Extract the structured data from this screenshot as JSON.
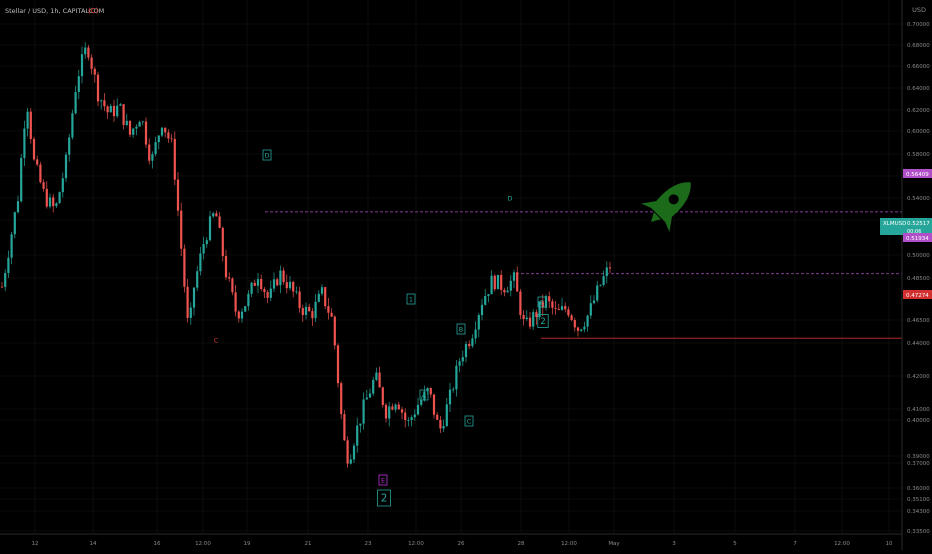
{
  "header": {
    "symbol": "Stellar / USD, 1h, CAPITALCOM",
    "wave_degree": "(C)"
  },
  "axis": {
    "currency": "USD"
  },
  "colors": {
    "up": "#26a69a",
    "down": "#ef5350",
    "grid": "#141414",
    "axis_text": "#8a8a8a",
    "wave_label": "#26a69a",
    "wave_label_red": "#e53935",
    "wave_label_magenta": "#ba33d6",
    "dashed_line": "#b04fc7",
    "support_line": "#d32f2f",
    "rocket": "#1b6b1b"
  },
  "price_badges": {
    "last": {
      "label": "XLMUSD",
      "value": "0.52517",
      "sub": "00:06",
      "color": "#26a69a"
    },
    "resistance": {
      "value": "0.56409",
      "color": "#b04fc7"
    },
    "mid": {
      "value": "0.51934",
      "color": "#b04fc7"
    },
    "support": {
      "value": "0.47274",
      "color": "#d32f2f"
    }
  },
  "wave_labels": [
    {
      "text": "D",
      "style": "box",
      "color": "teal"
    },
    {
      "text": "C",
      "style": "plain",
      "color": "red"
    },
    {
      "text": "D",
      "style": "plain",
      "color": "teal"
    },
    {
      "text": "1",
      "style": "box",
      "color": "teal"
    },
    {
      "text": "B",
      "style": "box",
      "color": "teal"
    },
    {
      "text": "A",
      "style": "box",
      "color": "teal"
    },
    {
      "text": "C",
      "style": "box",
      "color": "teal"
    },
    {
      "text": "E",
      "style": "box",
      "color": "magenta"
    },
    {
      "text": "2",
      "style": "box",
      "color": "teal"
    },
    {
      "text": "E",
      "style": "box",
      "color": "teal"
    },
    {
      "text": "2",
      "style": "box",
      "color": "teal"
    }
  ],
  "chart_data": {
    "type": "candlestick",
    "title": "Stellar / USD, 1h, CAPITALCOM",
    "ylabel": "USD",
    "ylim": [
      0.3333,
      0.7115
    ],
    "y_ticks": [
      "0.70000",
      "0.68000",
      "0.66000",
      "0.64000",
      "0.62000",
      "0.60000",
      "0.58000",
      "0.56000",
      "0.54000",
      "0.52000",
      "0.50000",
      "0.48500",
      "0.46500",
      "0.44000",
      "0.42000",
      "0.41000",
      "0.40000",
      "0.39000",
      "0.37000",
      "0.36000",
      "0.35100",
      "0.34300",
      "0.33500"
    ],
    "x_ticks": [
      "12",
      "14",
      "16",
      "12:00",
      "19",
      "21",
      "23",
      "12:00",
      "26",
      "28",
      "12:00",
      "May",
      "3",
      "5",
      "7",
      "12:00",
      "10"
    ],
    "levels": {
      "resistance_dashed": 0.56409,
      "mid_dashed": 0.51934,
      "support": 0.47274,
      "last_price": 0.52517
    },
    "path_points": [
      [
        0,
        0.51
      ],
      [
        1.5,
        0.575
      ],
      [
        2.3,
        0.648
      ],
      [
        3,
        0.6
      ],
      [
        4,
        0.575
      ],
      [
        5,
        0.565
      ],
      [
        6,
        0.6
      ],
      [
        7,
        0.66
      ],
      [
        8,
        0.685
      ],
      [
        9,
        0.65
      ],
      [
        10,
        0.635
      ],
      [
        11,
        0.64
      ],
      [
        12,
        0.62
      ],
      [
        13,
        0.635
      ],
      [
        14,
        0.6
      ],
      [
        15,
        0.63
      ],
      [
        16,
        0.61
      ],
      [
        17,
        0.52
      ],
      [
        17.5,
        0.475
      ],
      [
        18,
        0.51
      ],
      [
        19,
        0.545
      ],
      [
        20,
        0.565
      ],
      [
        21,
        0.52
      ],
      [
        22,
        0.49
      ],
      [
        23,
        0.5
      ],
      [
        24,
        0.52
      ],
      [
        25,
        0.5
      ],
      [
        26,
        0.52
      ],
      [
        27,
        0.51
      ],
      [
        28,
        0.495
      ],
      [
        29,
        0.49
      ],
      [
        30,
        0.505
      ],
      [
        31,
        0.485
      ],
      [
        32,
        0.4
      ],
      [
        32.5,
        0.385
      ],
      [
        33,
        0.4
      ],
      [
        34,
        0.425
      ],
      [
        35,
        0.445
      ],
      [
        36,
        0.42
      ],
      [
        37,
        0.43
      ],
      [
        38,
        0.41
      ],
      [
        39,
        0.425
      ],
      [
        40,
        0.435
      ],
      [
        41,
        0.405
      ],
      [
        42,
        0.43
      ],
      [
        43,
        0.46
      ],
      [
        44,
        0.475
      ],
      [
        45,
        0.5
      ],
      [
        46,
        0.515
      ],
      [
        47,
        0.51
      ],
      [
        48,
        0.515
      ],
      [
        49,
        0.48
      ],
      [
        50,
        0.49
      ],
      [
        51,
        0.5
      ],
      [
        52,
        0.49
      ],
      [
        53,
        0.495
      ],
      [
        54,
        0.48
      ],
      [
        55,
        0.49
      ],
      [
        56,
        0.51
      ],
      [
        57,
        0.525
      ]
    ]
  }
}
